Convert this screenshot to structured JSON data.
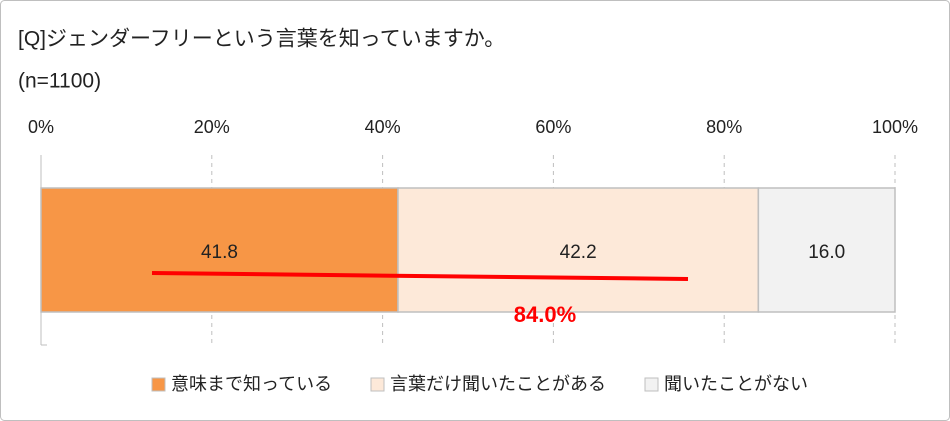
{
  "chart_data": {
    "type": "stacked-bar-horizontal",
    "title": "[Q]ジェンダーフリーという言葉を知っていますか。",
    "subtitle": "(n=1100)",
    "series": [
      {
        "name": "意味まで知っている",
        "color": "#f79646",
        "values": [
          41.8
        ]
      },
      {
        "name": "言葉だけ聞いたことがある",
        "color": "#fde9d9",
        "values": [
          42.2
        ]
      },
      {
        "name": "聞いたことがない",
        "color": "#f2f2f2",
        "values": [
          16.0
        ],
        "value_labels": [
          "16.0"
        ]
      }
    ],
    "xlim": [
      0,
      100
    ],
    "xticks": [
      {
        "value": 0,
        "label": "0%"
      },
      {
        "value": 20,
        "label": "20%"
      },
      {
        "value": 40,
        "label": "40%"
      },
      {
        "value": 60,
        "label": "60%"
      },
      {
        "value": 80,
        "label": "80%"
      },
      {
        "value": 100,
        "label": "100%"
      }
    ],
    "grid": true,
    "annotation": "84.0%",
    "annotation_color": "#ff0000"
  }
}
